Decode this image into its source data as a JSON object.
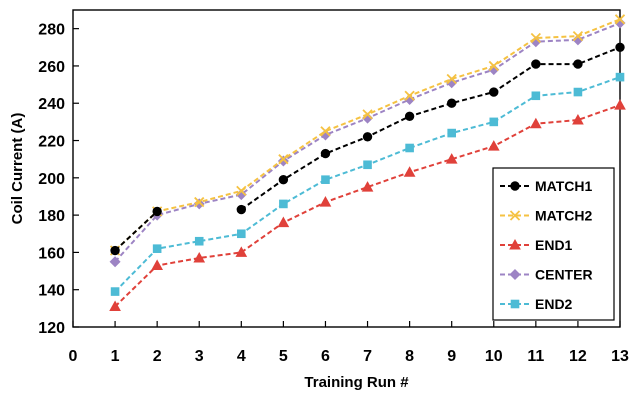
{
  "chart_data": {
    "type": "line",
    "xlabel": "Training Run #",
    "ylabel": "Coil Current (A)",
    "xlim": [
      0,
      13
    ],
    "ylim": [
      120,
      290
    ],
    "x_ticks": [
      "0",
      "1",
      "2",
      "3",
      "4",
      "5",
      "6",
      "7",
      "8",
      "9",
      "10",
      "11",
      "12",
      "13"
    ],
    "y_ticks": [
      "120",
      "140",
      "160",
      "180",
      "200",
      "220",
      "240",
      "260",
      "280"
    ],
    "legend_position": "right",
    "grid": false,
    "x": [
      1,
      2,
      3,
      4,
      5,
      6,
      7,
      8,
      9,
      10,
      11,
      12,
      13
    ],
    "series": [
      {
        "name": "MATCH1",
        "color": "#000000",
        "marker": "circle",
        "values": [
          161,
          182,
          null,
          183,
          199,
          213,
          222,
          233,
          240,
          246,
          261,
          261,
          270
        ]
      },
      {
        "name": "MATCH2",
        "color": "#f5c242",
        "marker": "x",
        "values": [
          161,
          182,
          187,
          193,
          210,
          225,
          234,
          244,
          253,
          260,
          275,
          276,
          285
        ]
      },
      {
        "name": "END1",
        "color": "#e0413a",
        "marker": "triangle",
        "values": [
          131,
          153,
          157,
          160,
          176,
          187,
          195,
          203,
          210,
          217,
          229,
          231,
          239
        ]
      },
      {
        "name": "CENTER",
        "color": "#9d84c4",
        "marker": "diamond",
        "values": [
          155,
          180,
          186,
          191,
          209,
          223,
          232,
          242,
          251,
          258,
          273,
          274,
          283
        ]
      },
      {
        "name": "END2",
        "color": "#4dbbd5",
        "marker": "square",
        "values": [
          139,
          162,
          166,
          170,
          186,
          199,
          207,
          216,
          224,
          230,
          244,
          246,
          254
        ]
      }
    ]
  }
}
